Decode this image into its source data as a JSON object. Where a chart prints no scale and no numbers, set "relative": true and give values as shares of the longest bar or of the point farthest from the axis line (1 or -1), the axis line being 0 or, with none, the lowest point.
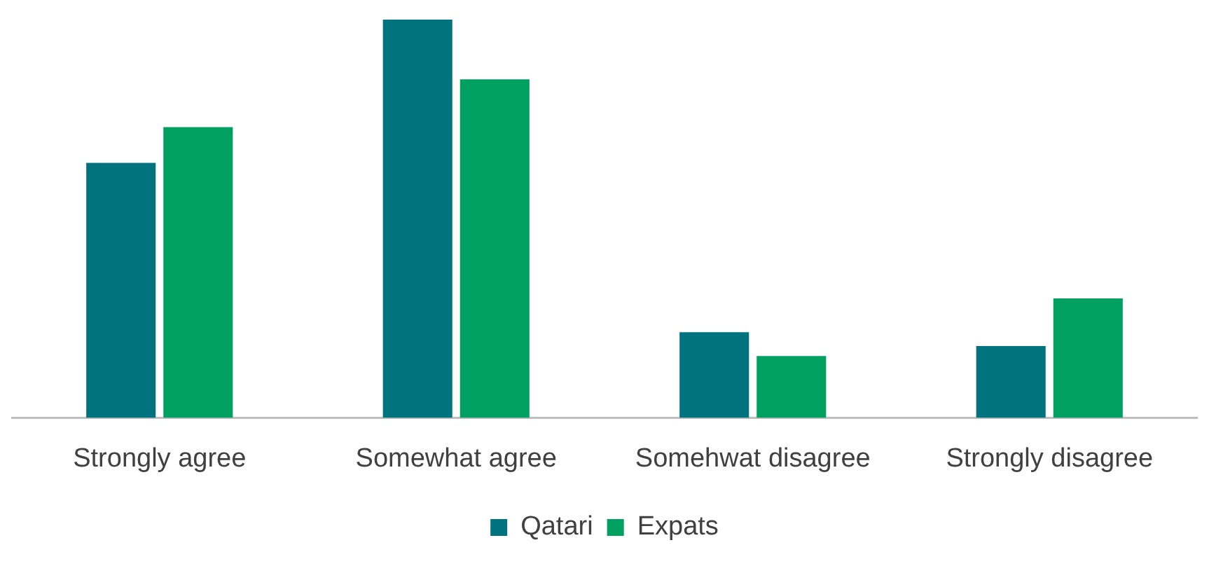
{
  "chart_data": {
    "type": "bar",
    "relative": true,
    "categories": [
      "Strongly agree",
      "Somewhat agree",
      "Somehwat disagree",
      "Strongly disagree"
    ],
    "series": [
      {
        "name": "Qatari",
        "color": "#00737f",
        "values": [
          0.64,
          1,
          0.215,
          0.18
        ]
      },
      {
        "name": "Expats",
        "color": "#00a060",
        "values": [
          0.73,
          0.85,
          0.155,
          0.3
        ]
      }
    ],
    "legend": "bottom",
    "grid": false
  }
}
